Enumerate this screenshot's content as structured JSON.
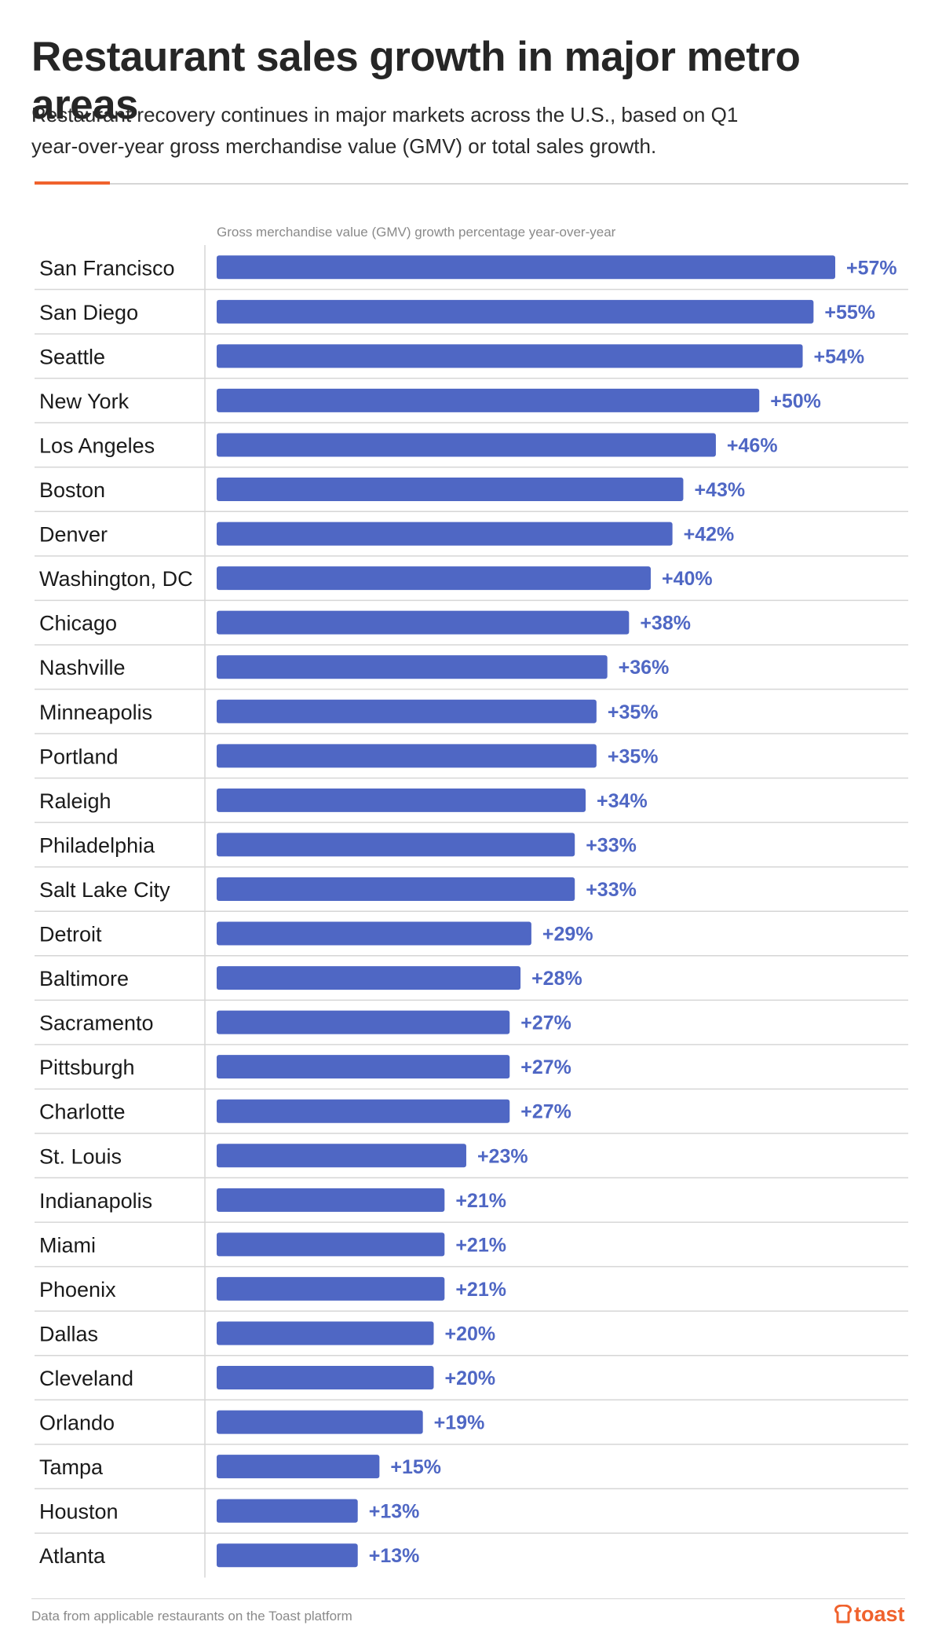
{
  "header": {
    "title": "Restaurant sales growth in major metro areas",
    "subtitle": "Restaurant recovery continues in major markets across the U.S., based on Q1 year-over-year gross merchandise value (GMV) or total sales growth."
  },
  "colors": {
    "bar": "#4f67c4",
    "value_label": "#4f67c4",
    "accent": "#f0622d",
    "gridline": "#d6d6d6",
    "category_text": "#1a1a1a"
  },
  "chart_data": {
    "type": "bar",
    "orientation": "horizontal",
    "xlabel": "Gross merchandise value (GMV) growth percentage year-over-year",
    "ylabel": "",
    "xlim": [
      0,
      57
    ],
    "grid": true,
    "categories": [
      "San Francisco",
      "San Diego",
      "Seattle",
      "New York",
      "Los Angeles",
      "Boston",
      "Denver",
      "Washington, DC",
      "Chicago",
      "Nashville",
      "Minneapolis",
      "Portland",
      "Raleigh",
      "Philadelphia",
      "Salt Lake City",
      "Detroit",
      "Baltimore",
      "Sacramento",
      "Pittsburgh",
      "Charlotte",
      "St. Louis",
      "Indianapolis",
      "Miami",
      "Phoenix",
      "Dallas",
      "Cleveland",
      "Orlando",
      "Tampa",
      "Houston",
      "Atlanta"
    ],
    "values": [
      57,
      55,
      54,
      50,
      46,
      43,
      42,
      40,
      38,
      36,
      35,
      35,
      34,
      33,
      33,
      29,
      28,
      27,
      27,
      27,
      23,
      21,
      21,
      21,
      20,
      20,
      19,
      15,
      13,
      13
    ],
    "value_labels": [
      "+57%",
      "+55%",
      "+54%",
      "+50%",
      "+46%",
      "+43%",
      "+42%",
      "+40%",
      "+38%",
      "+36%",
      "+35%",
      "+35%",
      "+34%",
      "+33%",
      "+33%",
      "+29%",
      "+28%",
      "+27%",
      "+27%",
      "+27%",
      "+23%",
      "+21%",
      "+21%",
      "+21%",
      "+20%",
      "+20%",
      "+19%",
      "+15%",
      "+13%",
      "+13%"
    ]
  },
  "footer": {
    "note": "Data from applicable restaurants on the Toast platform",
    "logo_text": "toast",
    "logo_icon": "toast-logo-icon"
  }
}
